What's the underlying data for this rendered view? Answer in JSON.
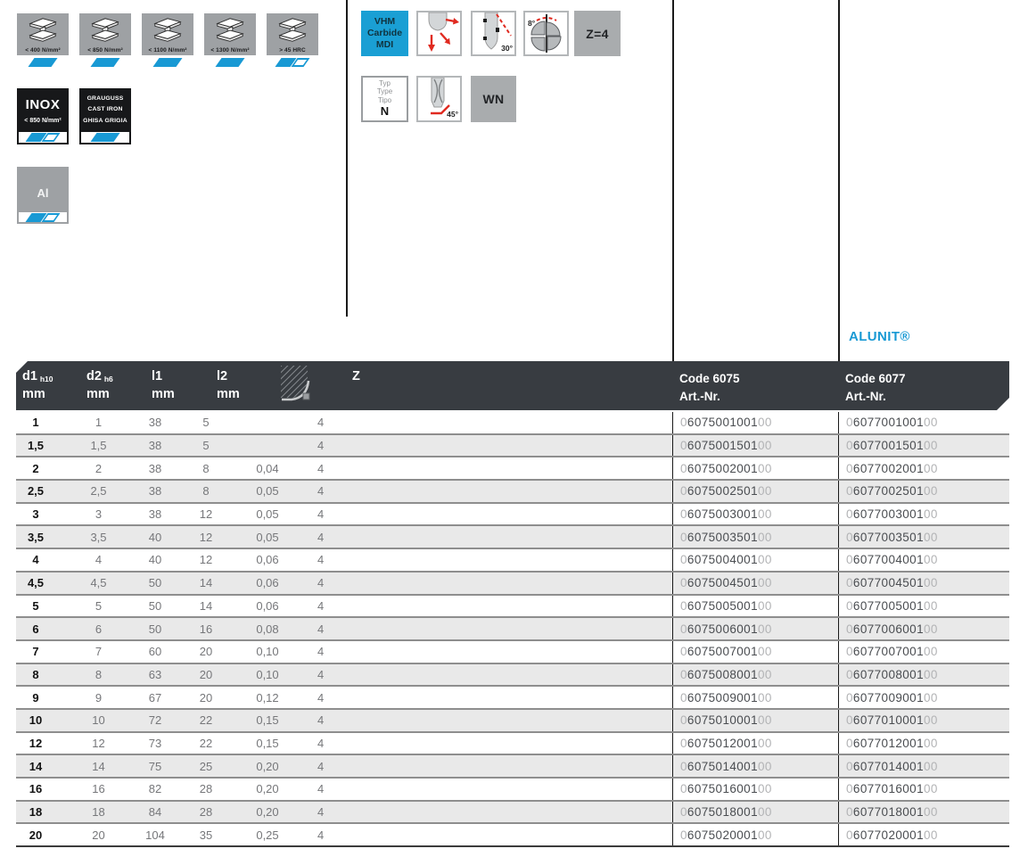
{
  "colors": {
    "accent_blue": "#1899d4",
    "header_bg": "#383c41",
    "row_alt": "#e9e9e9",
    "icon_gray": "#9ea1a4"
  },
  "materials": {
    "beams": [
      {
        "label": "< 400 N/mm²",
        "fill": "full"
      },
      {
        "label": "< 850 N/mm²",
        "fill": "full"
      },
      {
        "label": "< 1100 N/mm²",
        "fill": "full"
      },
      {
        "label": "< 1300 N/mm²",
        "fill": "full"
      },
      {
        "label": "> 45 HRC",
        "fill": "half"
      }
    ],
    "inox": {
      "title": "INOX",
      "subtitle": "< 850 N/mm²",
      "fill": "half"
    },
    "cast_iron": {
      "lines": [
        "GRAUGUSS",
        "CAST IRON",
        "GHISA GRIGIA"
      ],
      "fill": "full"
    },
    "aluminium": {
      "title": "Al",
      "fill": "half"
    }
  },
  "features": {
    "carbide": {
      "lines": [
        "VHM",
        "Carbide",
        "MDI"
      ]
    },
    "helix_label": "30°",
    "face_angle_label": "8°",
    "flutes_label": "Z=4",
    "type_box": {
      "lines": [
        "Typ",
        "Type",
        "Tipo"
      ],
      "value": "N"
    },
    "chamfer_label": "45°",
    "wn_label": "WN"
  },
  "alunit": "ALUNIT®",
  "table": {
    "header": {
      "d1": {
        "main": "d1",
        "sub": "h10",
        "unit": "mm"
      },
      "d2": {
        "main": "d2",
        "sub": "h6",
        "unit": "mm"
      },
      "l1": {
        "main": "l1",
        "unit": "mm"
      },
      "l2": {
        "main": "l2",
        "unit": "mm"
      },
      "z": "Z",
      "code6075": {
        "line1": "Code 6075",
        "line2": "Art.-Nr."
      },
      "code6077": {
        "line1": "Code 6077",
        "line2": "Art.-Nr."
      }
    },
    "code_prefix": "0",
    "code_suffix": "00",
    "rows": [
      {
        "d1": "1",
        "d2": "1",
        "l1": "38",
        "l2": "5",
        "r": "",
        "z": "4",
        "c6075": "6075001001",
        "c6077": "6077001001"
      },
      {
        "d1": "1,5",
        "d2": "1,5",
        "l1": "38",
        "l2": "5",
        "r": "",
        "z": "4",
        "c6075": "6075001501",
        "c6077": "6077001501"
      },
      {
        "d1": "2",
        "d2": "2",
        "l1": "38",
        "l2": "8",
        "r": "0,04",
        "z": "4",
        "c6075": "6075002001",
        "c6077": "6077002001"
      },
      {
        "d1": "2,5",
        "d2": "2,5",
        "l1": "38",
        "l2": "8",
        "r": "0,05",
        "z": "4",
        "c6075": "6075002501",
        "c6077": "6077002501"
      },
      {
        "d1": "3",
        "d2": "3",
        "l1": "38",
        "l2": "12",
        "r": "0,05",
        "z": "4",
        "c6075": "6075003001",
        "c6077": "6077003001"
      },
      {
        "d1": "3,5",
        "d2": "3,5",
        "l1": "40",
        "l2": "12",
        "r": "0,05",
        "z": "4",
        "c6075": "6075003501",
        "c6077": "6077003501"
      },
      {
        "d1": "4",
        "d2": "4",
        "l1": "40",
        "l2": "12",
        "r": "0,06",
        "z": "4",
        "c6075": "6075004001",
        "c6077": "6077004001"
      },
      {
        "d1": "4,5",
        "d2": "4,5",
        "l1": "50",
        "l2": "14",
        "r": "0,06",
        "z": "4",
        "c6075": "6075004501",
        "c6077": "6077004501"
      },
      {
        "d1": "5",
        "d2": "5",
        "l1": "50",
        "l2": "14",
        "r": "0,06",
        "z": "4",
        "c6075": "6075005001",
        "c6077": "6077005001"
      },
      {
        "d1": "6",
        "d2": "6",
        "l1": "50",
        "l2": "16",
        "r": "0,08",
        "z": "4",
        "c6075": "6075006001",
        "c6077": "6077006001"
      },
      {
        "d1": "7",
        "d2": "7",
        "l1": "60",
        "l2": "20",
        "r": "0,10",
        "z": "4",
        "c6075": "6075007001",
        "c6077": "6077007001"
      },
      {
        "d1": "8",
        "d2": "8",
        "l1": "63",
        "l2": "20",
        "r": "0,10",
        "z": "4",
        "c6075": "6075008001",
        "c6077": "6077008001"
      },
      {
        "d1": "9",
        "d2": "9",
        "l1": "67",
        "l2": "20",
        "r": "0,12",
        "z": "4",
        "c6075": "6075009001",
        "c6077": "6077009001"
      },
      {
        "d1": "10",
        "d2": "10",
        "l1": "72",
        "l2": "22",
        "r": "0,15",
        "z": "4",
        "c6075": "6075010001",
        "c6077": "6077010001"
      },
      {
        "d1": "12",
        "d2": "12",
        "l1": "73",
        "l2": "22",
        "r": "0,15",
        "z": "4",
        "c6075": "6075012001",
        "c6077": "6077012001"
      },
      {
        "d1": "14",
        "d2": "14",
        "l1": "75",
        "l2": "25",
        "r": "0,20",
        "z": "4",
        "c6075": "6075014001",
        "c6077": "6077014001"
      },
      {
        "d1": "16",
        "d2": "16",
        "l1": "82",
        "l2": "28",
        "r": "0,20",
        "z": "4",
        "c6075": "6075016001",
        "c6077": "6077016001"
      },
      {
        "d1": "18",
        "d2": "18",
        "l1": "84",
        "l2": "28",
        "r": "0,20",
        "z": "4",
        "c6075": "6075018001",
        "c6077": "6077018001"
      },
      {
        "d1": "20",
        "d2": "20",
        "l1": "104",
        "l2": "35",
        "r": "0,25",
        "z": "4",
        "c6075": "6075020001",
        "c6077": "6077020001"
      }
    ]
  }
}
